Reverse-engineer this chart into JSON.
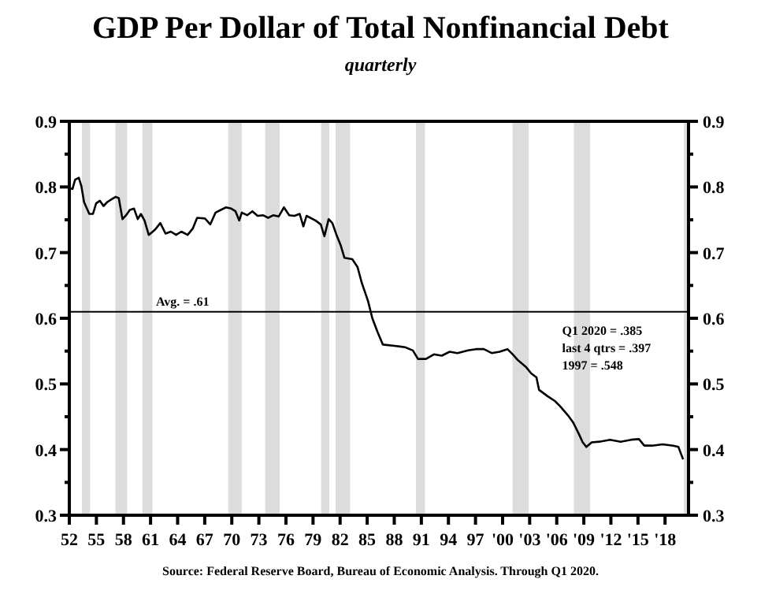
{
  "chart_data": {
    "type": "line",
    "title": "GDP Per Dollar of Total Nonfinancial Debt",
    "subtitle": "quarterly",
    "annotations": [
      "Q1 2020 = .385",
      "last 4 qtrs = .397",
      "1997 = .548",
      "Source:  Federal Reserve Board, Bureau of Economic Analysis.  Through Q1 2020."
    ],
    "xlim": [
      1952,
      2020.6
    ],
    "xticks": [
      {
        "value": 1952,
        "label": "52"
      },
      {
        "value": 1955,
        "label": "55"
      },
      {
        "value": 1958,
        "label": "58"
      },
      {
        "value": 1961,
        "label": "61"
      },
      {
        "value": 1964,
        "label": "64"
      },
      {
        "value": 1967,
        "label": "67"
      },
      {
        "value": 1970,
        "label": "70"
      },
      {
        "value": 1973,
        "label": "73"
      },
      {
        "value": 1976,
        "label": "76"
      },
      {
        "value": 1979,
        "label": "79"
      },
      {
        "value": 1982,
        "label": "82"
      },
      {
        "value": 1985,
        "label": "85"
      },
      {
        "value": 1988,
        "label": "88"
      },
      {
        "value": 1991,
        "label": "91"
      },
      {
        "value": 1994,
        "label": "94"
      },
      {
        "value": 1997,
        "label": "97"
      },
      {
        "value": 2000,
        "label": "'00"
      },
      {
        "value": 2003,
        "label": "'03"
      },
      {
        "value": 2006,
        "label": "'06"
      },
      {
        "value": 2009,
        "label": "'09"
      },
      {
        "value": 2012,
        "label": "'12"
      },
      {
        "value": 2015,
        "label": "'15"
      },
      {
        "value": 2018,
        "label": "'18"
      }
    ],
    "ylim": [
      0.3,
      0.9
    ],
    "yticks": [
      0.3,
      {
        "value": 0.35,
        "label": null
      },
      0.4,
      {
        "value": 0.45,
        "label": null
      },
      0.5,
      {
        "value": 0.55,
        "label": null
      },
      0.6,
      {
        "value": 0.65,
        "label": null
      },
      0.7,
      {
        "value": 0.75,
        "label": null
      },
      0.8,
      {
        "value": 0.85,
        "label": null
      },
      0.9
    ],
    "y2lim": [
      0.3,
      0.9
    ],
    "y2ticks": [
      0.3,
      {
        "value": 0.35,
        "label": null
      },
      0.4,
      {
        "value": 0.45,
        "label": null
      },
      0.5,
      {
        "value": 0.55,
        "label": null
      },
      0.6,
      {
        "value": 0.65,
        "label": null
      },
      0.7,
      {
        "value": 0.75,
        "label": null
      },
      0.8,
      {
        "value": 0.85,
        "label": null
      },
      0.9
    ],
    "grid": false,
    "line_style": "solid",
    "ref_lines": [
      {
        "axis": "y",
        "value": 0.61,
        "label": "Avg. = .61",
        "color": "#000000"
      }
    ],
    "bands": [
      {
        "axis": "x",
        "from": 1953.4,
        "to": 1954.3,
        "color": "#dcdcdc"
      },
      {
        "axis": "x",
        "from": 1957.1,
        "to": 1958.4,
        "color": "#dcdcdc"
      },
      {
        "axis": "x",
        "from": 1960.1,
        "to": 1961.2,
        "color": "#dcdcdc"
      },
      {
        "axis": "x",
        "from": 1969.6,
        "to": 1971.1,
        "color": "#dcdcdc"
      },
      {
        "axis": "x",
        "from": 1973.7,
        "to": 1975.3,
        "color": "#dcdcdc"
      },
      {
        "axis": "x",
        "from": 1979.9,
        "to": 1980.8,
        "color": "#dcdcdc"
      },
      {
        "axis": "x",
        "from": 1981.5,
        "to": 1983.1,
        "color": "#dcdcdc"
      },
      {
        "axis": "x",
        "from": 1990.4,
        "to": 1991.4,
        "color": "#dcdcdc"
      },
      {
        "axis": "x",
        "from": 2001.1,
        "to": 2002.9,
        "color": "#dcdcdc"
      },
      {
        "axis": "x",
        "from": 2007.9,
        "to": 2009.7,
        "color": "#dcdcdc"
      },
      {
        "axis": "x",
        "from": 2020.1,
        "to": 2020.6,
        "color": "#dcdcdc"
      }
    ],
    "series": [
      {
        "color": "#000000",
        "x": [
          1952.0,
          1952.35,
          1952.64,
          1953.05,
          1953.34,
          1953.63,
          1954.21,
          1954.62,
          1954.97,
          1955.38,
          1955.79,
          1956.2,
          1956.66,
          1957.13,
          1957.48,
          1957.89,
          1958.29,
          1958.7,
          1959.17,
          1959.58,
          1959.93,
          1960.33,
          1960.8,
          1961.5,
          1962.08,
          1962.66,
          1963.25,
          1963.83,
          1964.41,
          1965.11,
          1965.69,
          1966.16,
          1967.03,
          1967.62,
          1968.2,
          1968.78,
          1969.37,
          1969.95,
          1970.41,
          1970.82,
          1971.11,
          1971.7,
          1972.28,
          1972.86,
          1973.45,
          1974.03,
          1974.61,
          1975.19,
          1975.78,
          1976.36,
          1976.94,
          1977.52,
          1977.93,
          1978.28,
          1979.27,
          1979.86,
          1980.26,
          1980.73,
          1981.14,
          1981.6,
          1982.07,
          1982.48,
          1983.35,
          1983.93,
          1984.4,
          1985.1,
          1985.57,
          1986.15,
          1986.73,
          1988.01,
          1989.18,
          1990.06,
          1990.63,
          1991.51,
          1992.39,
          1993.26,
          1994.13,
          1995.01,
          1996.17,
          1997.05,
          1997.92,
          1998.79,
          1999.67,
          2000.54,
          2001.13,
          2001.71,
          2002.58,
          2003.17,
          2003.75,
          2004.04,
          2004.92,
          2005.79,
          2006.37,
          2007.25,
          2007.83,
          2008.41,
          2008.88,
          2009.29,
          2009.87,
          2010.74,
          2011.91,
          2013.07,
          2014.24,
          2015.11,
          2015.7,
          2016.57,
          2017.73,
          2018.9,
          2019.48,
          2020.0
        ],
        "values": [
          0.798,
          0.797,
          0.811,
          0.814,
          0.801,
          0.777,
          0.759,
          0.759,
          0.775,
          0.779,
          0.771,
          0.777,
          0.781,
          0.785,
          0.783,
          0.751,
          0.757,
          0.765,
          0.767,
          0.751,
          0.759,
          0.749,
          0.727,
          0.735,
          0.745,
          0.729,
          0.732,
          0.727,
          0.732,
          0.727,
          0.737,
          0.753,
          0.752,
          0.743,
          0.761,
          0.765,
          0.769,
          0.767,
          0.763,
          0.749,
          0.761,
          0.757,
          0.763,
          0.756,
          0.757,
          0.753,
          0.757,
          0.755,
          0.769,
          0.757,
          0.756,
          0.759,
          0.74,
          0.756,
          0.749,
          0.743,
          0.725,
          0.751,
          0.745,
          0.727,
          0.711,
          0.692,
          0.69,
          0.678,
          0.654,
          0.626,
          0.6,
          0.579,
          0.56,
          0.558,
          0.556,
          0.551,
          0.538,
          0.538,
          0.545,
          0.543,
          0.549,
          0.547,
          0.551,
          0.553,
          0.553,
          0.547,
          0.549,
          0.553,
          0.545,
          0.536,
          0.526,
          0.516,
          0.51,
          0.491,
          0.482,
          0.474,
          0.466,
          0.452,
          0.441,
          0.425,
          0.411,
          0.404,
          0.411,
          0.412,
          0.415,
          0.412,
          0.415,
          0.416,
          0.406,
          0.406,
          0.408,
          0.406,
          0.404,
          0.385
        ]
      }
    ]
  }
}
